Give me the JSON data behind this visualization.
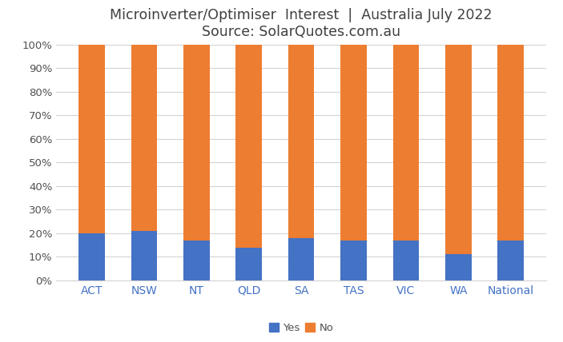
{
  "categories": [
    "ACT",
    "NSW",
    "NT",
    "QLD",
    "SA",
    "TAS",
    "VIC",
    "WA",
    "National"
  ],
  "yes_values": [
    20,
    21,
    17,
    14,
    18,
    17,
    17,
    11,
    17
  ],
  "no_values": [
    80,
    79,
    83,
    86,
    82,
    83,
    83,
    89,
    83
  ],
  "yes_color": "#4472C4",
  "no_color": "#ED7D31",
  "title_line1": "Microinverter/Optimiser  Interest  |  Australia July 2022",
  "title_line2": "Source: SolarQuotes.com.au",
  "ylim": [
    0,
    100
  ],
  "yticks": [
    0,
    10,
    20,
    30,
    40,
    50,
    60,
    70,
    80,
    90,
    100
  ],
  "ytick_labels": [
    "0%",
    "10%",
    "20%",
    "30%",
    "40%",
    "50%",
    "60%",
    "70%",
    "80%",
    "90%",
    "100%"
  ],
  "legend_yes": "Yes",
  "legend_no": "No",
  "background_color": "#ffffff",
  "xaxis_label_color": "#4472C4",
  "title_color": "#404040",
  "grid_color": "#d3d3d3",
  "bar_width": 0.5,
  "title_fontsize": 12.5,
  "tick_fontsize": 9.5,
  "xtick_fontsize": 10
}
